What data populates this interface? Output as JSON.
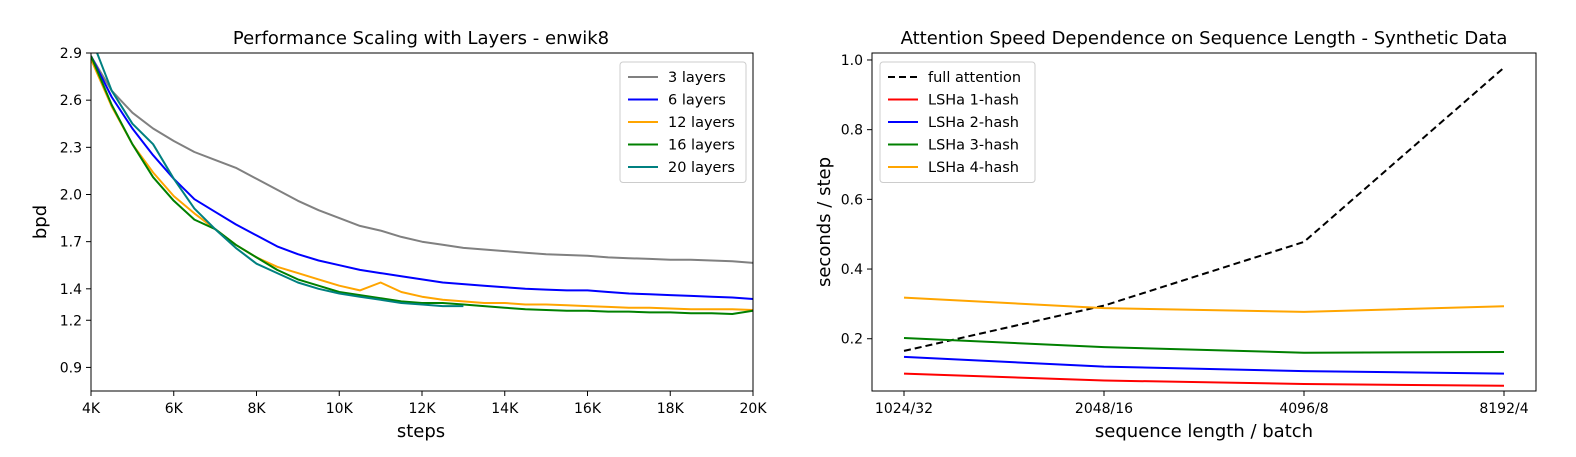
{
  "chart_data": [
    {
      "type": "line",
      "title": "Performance Scaling with Layers - enwik8",
      "xlabel": "steps",
      "ylabel": "bpd",
      "xlim": [
        4000,
        20000
      ],
      "ylim": [
        0.75,
        2.9
      ],
      "xticks": [
        4000,
        6000,
        8000,
        10000,
        12000,
        14000,
        16000,
        18000,
        20000
      ],
      "xtick_labels": [
        "4K",
        "6K",
        "8K",
        "10K",
        "12K",
        "14K",
        "16K",
        "18K",
        "20K"
      ],
      "yticks": [
        0.9,
        1.2,
        1.4,
        1.7,
        2.0,
        2.3,
        2.6,
        2.9
      ],
      "ytick_labels": [
        "0.9",
        "1.2",
        "1.4",
        "1.7",
        "2.0",
        "2.3",
        "2.6",
        "2.9"
      ],
      "legend": "top-right",
      "grid": false,
      "series": [
        {
          "name": "3 layers",
          "color": "#808080",
          "x": [
            4000,
            4500,
            5000,
            5500,
            6000,
            6500,
            7000,
            7500,
            8000,
            8500,
            9000,
            9500,
            10000,
            10500,
            11000,
            11500,
            12000,
            12500,
            13000,
            13500,
            14000,
            14500,
            15000,
            15500,
            16000,
            16500,
            17000,
            17500,
            18000,
            18500,
            19000,
            19500,
            20000
          ],
          "y": [
            2.88,
            2.66,
            2.52,
            2.42,
            2.34,
            2.27,
            2.22,
            2.17,
            2.1,
            2.03,
            1.96,
            1.9,
            1.85,
            1.8,
            1.77,
            1.73,
            1.7,
            1.68,
            1.66,
            1.65,
            1.64,
            1.63,
            1.62,
            1.615,
            1.61,
            1.6,
            1.595,
            1.59,
            1.585,
            1.585,
            1.58,
            1.575,
            1.565
          ]
        },
        {
          "name": "6 layers",
          "color": "#0000ff",
          "x": [
            4000,
            4500,
            5000,
            5500,
            6000,
            6500,
            7000,
            7500,
            8000,
            8500,
            9000,
            9500,
            10000,
            10500,
            11000,
            11500,
            12000,
            12500,
            13000,
            13500,
            14000,
            14500,
            15000,
            15500,
            16000,
            16500,
            17000,
            17500,
            18000,
            18500,
            19000,
            19500,
            20000
          ],
          "y": [
            2.88,
            2.62,
            2.42,
            2.25,
            2.1,
            1.97,
            1.89,
            1.81,
            1.74,
            1.67,
            1.62,
            1.58,
            1.55,
            1.52,
            1.5,
            1.48,
            1.46,
            1.44,
            1.43,
            1.42,
            1.41,
            1.4,
            1.395,
            1.39,
            1.39,
            1.38,
            1.37,
            1.365,
            1.36,
            1.355,
            1.35,
            1.345,
            1.335
          ]
        },
        {
          "name": "12 layers",
          "color": "#ffa500",
          "x": [
            4000,
            4500,
            5000,
            5500,
            6000,
            6500,
            7000,
            7500,
            8000,
            8500,
            9000,
            9500,
            10000,
            10500,
            11000,
            11500,
            12000,
            12500,
            13000,
            13500,
            14000,
            14500,
            15000,
            15500,
            16000,
            16500,
            17000,
            17500,
            18000,
            18500,
            19000,
            19500,
            20000
          ],
          "y": [
            2.86,
            2.56,
            2.32,
            2.14,
            1.99,
            1.88,
            1.78,
            1.68,
            1.6,
            1.54,
            1.5,
            1.46,
            1.42,
            1.39,
            1.44,
            1.38,
            1.35,
            1.33,
            1.32,
            1.31,
            1.31,
            1.3,
            1.3,
            1.295,
            1.29,
            1.285,
            1.28,
            1.28,
            1.275,
            1.27,
            1.27,
            1.27,
            1.265
          ]
        },
        {
          "name": "16 layers",
          "color": "#008000",
          "x": [
            4000,
            4500,
            5000,
            5500,
            6000,
            6500,
            7000,
            7500,
            8000,
            8500,
            9000,
            9500,
            10000,
            10500,
            11000,
            11500,
            12000,
            12500,
            13000,
            13500,
            14000,
            14500,
            15000,
            15500,
            16000,
            16500,
            17000,
            17500,
            18000,
            18500,
            19000,
            19500,
            20000
          ],
          "y": [
            2.88,
            2.57,
            2.32,
            2.11,
            1.96,
            1.84,
            1.78,
            1.68,
            1.6,
            1.52,
            1.46,
            1.42,
            1.38,
            1.36,
            1.34,
            1.32,
            1.31,
            1.31,
            1.3,
            1.29,
            1.28,
            1.27,
            1.265,
            1.26,
            1.26,
            1.255,
            1.255,
            1.25,
            1.25,
            1.245,
            1.245,
            1.24,
            1.26
          ]
        },
        {
          "name": "20 layers",
          "color": "#008080",
          "x": [
            4000,
            4500,
            5000,
            5500,
            6000,
            6500,
            7000,
            7500,
            8000,
            8500,
            9000,
            9500,
            10000,
            10500,
            11000,
            11500,
            12000,
            12500,
            13000
          ],
          "y": [
            3.0,
            2.66,
            2.45,
            2.32,
            2.1,
            1.91,
            1.78,
            1.66,
            1.56,
            1.5,
            1.44,
            1.4,
            1.37,
            1.35,
            1.33,
            1.31,
            1.3,
            1.29,
            1.29
          ]
        }
      ]
    },
    {
      "type": "line",
      "title": "Attention Speed Dependence on Sequence Length - Synthetic Data",
      "xlabel": "sequence length / batch",
      "ylabel": "seconds / step",
      "categories": [
        "1024/32",
        "2048/16",
        "4096/8",
        "8192/4"
      ],
      "ylim": [
        0.05,
        1.02
      ],
      "yticks": [
        0.2,
        0.4,
        0.6,
        0.8,
        1.0
      ],
      "ytick_labels": [
        "0.2",
        "0.4",
        "0.6",
        "0.8",
        "1.0"
      ],
      "legend": "top-left",
      "grid": false,
      "series": [
        {
          "name": "full attention",
          "color": "#000000",
          "dashed": true,
          "values": [
            0.165,
            0.295,
            0.478,
            0.978
          ]
        },
        {
          "name": "LSHa 1-hash",
          "color": "#ff0000",
          "values": [
            0.1,
            0.08,
            0.07,
            0.065
          ]
        },
        {
          "name": "LSHa 2-hash",
          "color": "#0000ff",
          "values": [
            0.148,
            0.12,
            0.107,
            0.1
          ]
        },
        {
          "name": "LSHa 3-hash",
          "color": "#008000",
          "values": [
            0.202,
            0.176,
            0.16,
            0.162
          ]
        },
        {
          "name": "LSHa 4-hash",
          "color": "#ffa500",
          "values": [
            0.318,
            0.288,
            0.277,
            0.293
          ]
        }
      ]
    }
  ]
}
